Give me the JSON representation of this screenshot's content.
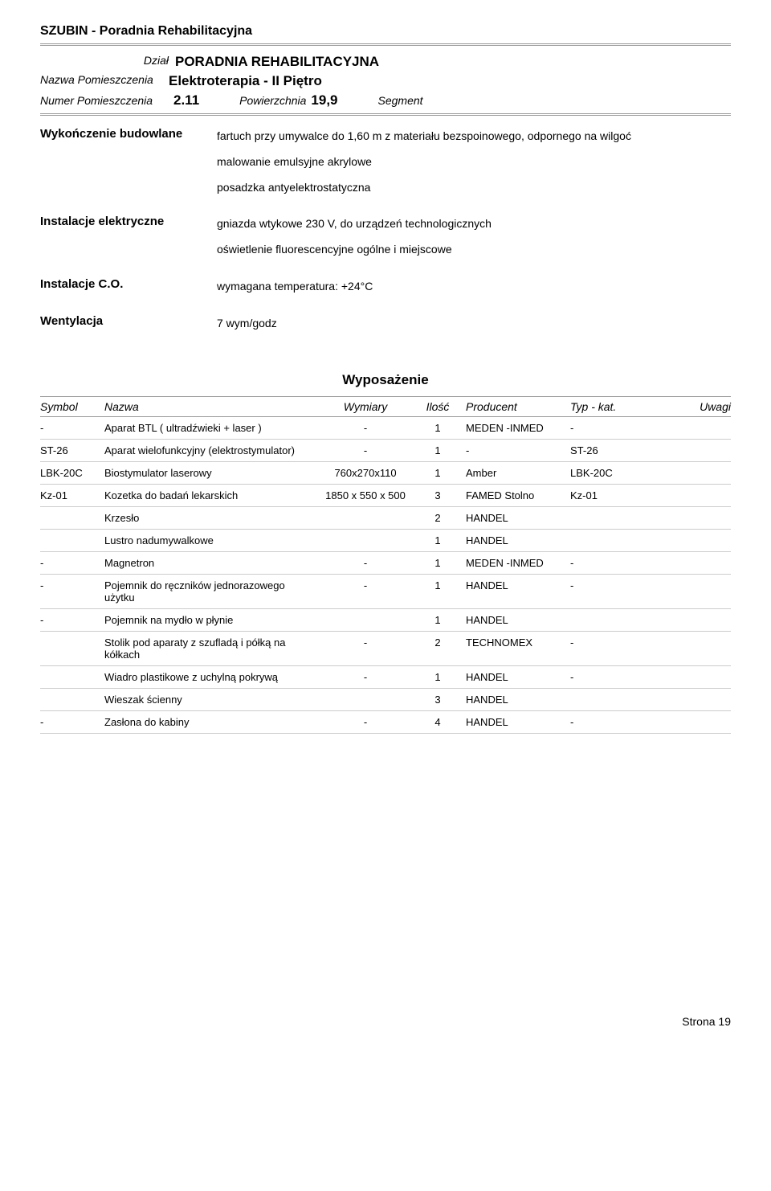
{
  "header": {
    "title": "SZUBIN - Poradnia Rehabilitacyjna"
  },
  "info": {
    "dzial_label": "Dział",
    "dzial_value": "PORADNIA REHABILITACYJNA",
    "nazwa_pom_label": "Nazwa Pomieszczenia",
    "nazwa_pom_value": "Elektroterapia  -  II Piętro",
    "numer_pom_label": "Numer Pomieszczenia",
    "numer_pom_value": "2.11",
    "powierzchnia_label": "Powierzchnia",
    "powierzchnia_value": "19,9",
    "segment_label": "Segment"
  },
  "sections": {
    "wykonczenie": {
      "label": "Wykończenie budowlane",
      "lines": [
        "fartuch przy umywalce do 1,60 m z materiału bezspoinowego, odpornego na wilgoć",
        "malowanie emulsyjne akrylowe",
        "posadzka antyelektrostatyczna"
      ]
    },
    "elektryczne": {
      "label": "Instalacje elektryczne",
      "lines": [
        "gniazda wtykowe 230 V, do urządzeń technologicznych",
        "oświetlenie fluorescencyjne ogólne i miejscowe"
      ]
    },
    "co": {
      "label": "Instalacje C.O.",
      "lines": [
        "wymagana temperatura: +24°C"
      ]
    },
    "wentylacja": {
      "label": "Wentylacja",
      "lines": [
        "7 wym/godz"
      ]
    }
  },
  "wyposazenie": {
    "title": "Wyposażenie",
    "headers": {
      "symbol": "Symbol",
      "nazwa": "Nazwa",
      "wymiary": "Wymiary",
      "ilosc": "Ilość",
      "producent": "Producent",
      "typ": "Typ - kat.",
      "uwagi": "Uwagi"
    },
    "rows": [
      {
        "symbol": "-",
        "nazwa": "Aparat BTL ( ultradźwieki + laser )",
        "wymiary": "-",
        "ilosc": "1",
        "producent": "MEDEN -INMED",
        "typ": "-",
        "uwagi": ""
      },
      {
        "symbol": "ST-26",
        "nazwa": "Aparat wielofunkcyjny (elektrostymulator)",
        "wymiary": "-",
        "ilosc": "1",
        "producent": "-",
        "typ": "ST-26",
        "uwagi": ""
      },
      {
        "symbol": "LBK-20C",
        "nazwa": "Biostymulator laserowy",
        "wymiary": "760x270x110",
        "ilosc": "1",
        "producent": "Amber",
        "typ": "LBK-20C",
        "uwagi": ""
      },
      {
        "symbol": "Kz-01",
        "nazwa": "Kozetka do badań lekarskich",
        "wymiary": "1850 x 550 x 500",
        "ilosc": "3",
        "producent": "FAMED Stolno",
        "typ": "Kz-01",
        "uwagi": ""
      },
      {
        "symbol": "",
        "nazwa": "Krzesło",
        "wymiary": "",
        "ilosc": "2",
        "producent": "HANDEL",
        "typ": "",
        "uwagi": ""
      },
      {
        "symbol": "",
        "nazwa": "Lustro nadumywalkowe",
        "wymiary": "",
        "ilosc": "1",
        "producent": "HANDEL",
        "typ": "",
        "uwagi": ""
      },
      {
        "symbol": "-",
        "nazwa": "Magnetron",
        "wymiary": "-",
        "ilosc": "1",
        "producent": "MEDEN -INMED",
        "typ": "-",
        "uwagi": ""
      },
      {
        "symbol": "-",
        "nazwa": "Pojemnik do ręczników jednorazowego użytku",
        "wymiary": "-",
        "ilosc": "1",
        "producent": "HANDEL",
        "typ": "-",
        "uwagi": ""
      },
      {
        "symbol": "-",
        "nazwa": "Pojemnik na mydło w płynie",
        "wymiary": "",
        "ilosc": "1",
        "producent": "HANDEL",
        "typ": "",
        "uwagi": ""
      },
      {
        "symbol": "",
        "nazwa": "Stolik pod aparaty z szufladą i półką na kółkach",
        "wymiary": "-",
        "ilosc": "2",
        "producent": "TECHNOMEX",
        "typ": "-",
        "uwagi": ""
      },
      {
        "symbol": "",
        "nazwa": "Wiadro plastikowe z uchylną pokrywą",
        "wymiary": "-",
        "ilosc": "1",
        "producent": "HANDEL",
        "typ": "-",
        "uwagi": ""
      },
      {
        "symbol": "",
        "nazwa": "Wieszak ścienny",
        "wymiary": "",
        "ilosc": "3",
        "producent": "HANDEL",
        "typ": "",
        "uwagi": ""
      },
      {
        "symbol": "-",
        "nazwa": "Zasłona do kabiny",
        "wymiary": "-",
        "ilosc": "4",
        "producent": "HANDEL",
        "typ": "-",
        "uwagi": ""
      }
    ]
  },
  "footer": {
    "page": "Strona 19"
  }
}
